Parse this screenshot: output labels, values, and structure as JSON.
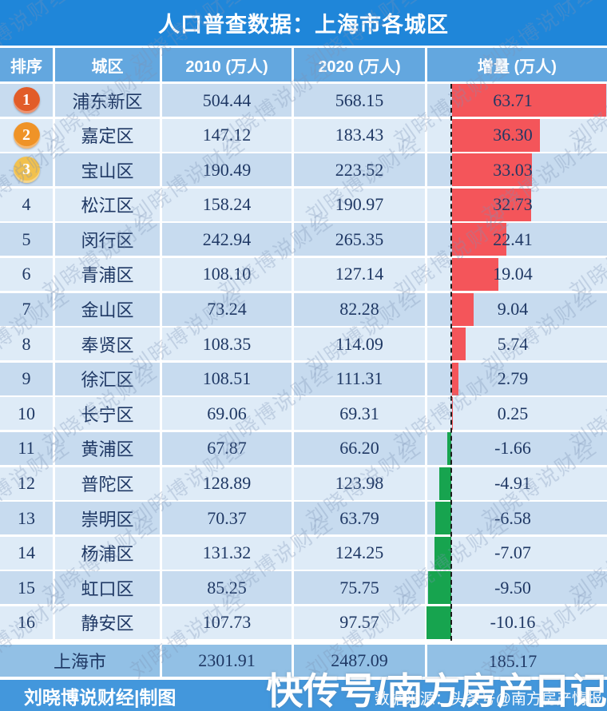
{
  "title": "人口普查数据：上海市各城区",
  "columns": [
    "排序",
    "城区",
    "2010 (万人)",
    "2020 (万人)",
    "增量 (万人)"
  ],
  "rows": [
    {
      "rank": "1",
      "district": "浦东新区",
      "y2010": "504.44",
      "y2020": "568.15",
      "delta": "63.71"
    },
    {
      "rank": "2",
      "district": "嘉定区",
      "y2010": "147.12",
      "y2020": "183.43",
      "delta": "36.30"
    },
    {
      "rank": "3",
      "district": "宝山区",
      "y2010": "190.49",
      "y2020": "223.52",
      "delta": "33.03"
    },
    {
      "rank": "4",
      "district": "松江区",
      "y2010": "158.24",
      "y2020": "190.97",
      "delta": "32.73"
    },
    {
      "rank": "5",
      "district": "闵行区",
      "y2010": "242.94",
      "y2020": "265.35",
      "delta": "22.41"
    },
    {
      "rank": "6",
      "district": "青浦区",
      "y2010": "108.10",
      "y2020": "127.14",
      "delta": "19.04"
    },
    {
      "rank": "7",
      "district": "金山区",
      "y2010": "73.24",
      "y2020": "82.28",
      "delta": "9.04"
    },
    {
      "rank": "8",
      "district": "奉贤区",
      "y2010": "108.35",
      "y2020": "114.09",
      "delta": "5.74"
    },
    {
      "rank": "9",
      "district": "徐汇区",
      "y2010": "108.51",
      "y2020": "111.31",
      "delta": "2.79"
    },
    {
      "rank": "10",
      "district": "长宁区",
      "y2010": "69.06",
      "y2020": "69.31",
      "delta": "0.25"
    },
    {
      "rank": "11",
      "district": "黄浦区",
      "y2010": "67.87",
      "y2020": "66.20",
      "delta": "-1.66"
    },
    {
      "rank": "12",
      "district": "普陀区",
      "y2010": "128.89",
      "y2020": "123.98",
      "delta": "-4.91"
    },
    {
      "rank": "13",
      "district": "崇明区",
      "y2010": "70.37",
      "y2020": "63.79",
      "delta": "-6.58"
    },
    {
      "rank": "14",
      "district": "杨浦区",
      "y2010": "131.32",
      "y2020": "124.25",
      "delta": "-7.07"
    },
    {
      "rank": "15",
      "district": "虹口区",
      "y2010": "85.25",
      "y2020": "75.75",
      "delta": "-9.50"
    },
    {
      "rank": "16",
      "district": "静安区",
      "y2010": "107.73",
      "y2020": "97.57",
      "delta": "-10.16"
    }
  ],
  "total": {
    "label": "上海市",
    "y2010": "2301.91",
    "y2020": "2487.09",
    "delta": "185.17"
  },
  "footer": {
    "credit": "刘晓博说财经|制图",
    "source": "数据来源：头条号@南方房产情报",
    "overlay": "快传号/南方房产日记"
  },
  "watermark": {
    "text": "刘晓博说财经"
  },
  "colors": {
    "title_bar": "#1f86d9",
    "header_row": "#63a7df",
    "row_odd": "#c7dbef",
    "row_even": "#deebf7",
    "total_row": "#92c0e5",
    "footer": "#4397dc",
    "positive_bar": "#f4555a",
    "negative_bar": "#17a44f",
    "text_dark": "#1f3864",
    "badges": {
      "1": "#e25c28",
      "2": "#ef9327",
      "3": "#f2c14d"
    }
  },
  "chart_data": {
    "type": "bar",
    "title": "人口普查数据：上海市各城区",
    "categories": [
      "浦东新区",
      "嘉定区",
      "宝山区",
      "松江区",
      "闵行区",
      "青浦区",
      "金山区",
      "奉贤区",
      "徐汇区",
      "长宁区",
      "黄浦区",
      "普陀区",
      "崇明区",
      "杨浦区",
      "虹口区",
      "静安区"
    ],
    "series": [
      {
        "name": "2010 (万人)",
        "values": [
          504.44,
          147.12,
          190.49,
          158.24,
          242.94,
          108.1,
          73.24,
          108.35,
          108.51,
          69.06,
          67.87,
          128.89,
          70.37,
          131.32,
          85.25,
          107.73
        ]
      },
      {
        "name": "2020 (万人)",
        "values": [
          568.15,
          183.43,
          223.52,
          190.97,
          265.35,
          127.14,
          82.28,
          114.09,
          111.31,
          69.31,
          66.2,
          123.98,
          63.79,
          124.25,
          75.75,
          97.57
        ]
      },
      {
        "name": "增量 (万人)",
        "values": [
          63.71,
          36.3,
          33.03,
          32.73,
          22.41,
          19.04,
          9.04,
          5.74,
          2.79,
          0.25,
          -1.66,
          -4.91,
          -6.58,
          -7.07,
          -9.5,
          -10.16
        ]
      }
    ],
    "bar_series": "增量 (万人)",
    "bar_axis_range": [
      -12,
      65
    ],
    "positive_color": "#f4555a",
    "negative_color": "#17a44f",
    "totals": {
      "label": "上海市",
      "2010": 2301.91,
      "2020": 2487.09,
      "增量": 185.17
    }
  }
}
